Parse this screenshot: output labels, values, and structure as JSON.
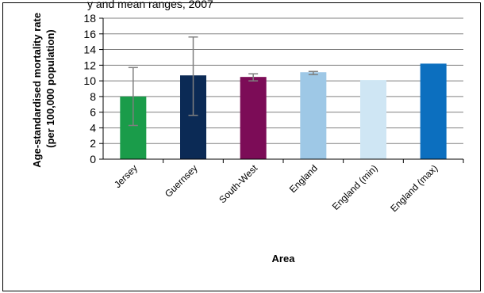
{
  "top_text": "y and mean ranges, 2007",
  "chart_data": {
    "type": "bar",
    "categories": [
      "Jersey",
      "Guernsey",
      "South-West",
      "England",
      "England (min)",
      "England (max)"
    ],
    "values": [
      8.0,
      10.7,
      10.5,
      11.1,
      10.1,
      12.2
    ],
    "error_low": [
      4.3,
      5.6,
      10.0,
      10.8,
      null,
      null
    ],
    "error_high": [
      11.7,
      15.6,
      10.9,
      11.2,
      null,
      null
    ],
    "colors": [
      "#1a9c4a",
      "#0b2a55",
      "#7c0c57",
      "#9ec8e6",
      "#cfe6f4",
      "#0c6fbf"
    ],
    "ylabel_line1": "Age-standardised mortality rate",
    "ylabel_line2": "(per 100,000 population)",
    "xlabel": "Area",
    "ylim": [
      0,
      18
    ],
    "yticks": [
      0,
      2,
      4,
      6,
      8,
      10,
      12,
      14,
      16,
      18
    ],
    "grid": true,
    "legend": "none"
  }
}
